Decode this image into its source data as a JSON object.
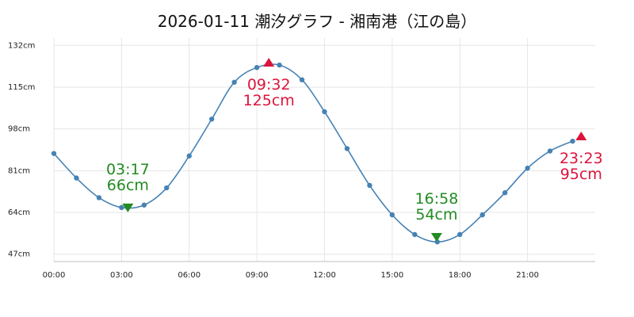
{
  "chart_data": {
    "type": "line",
    "title": "2026-01-11 潮汐グラフ - 湘南港（江の島）",
    "xlabel": "",
    "ylabel": "",
    "x_ticks": [
      "00:00",
      "03:00",
      "06:00",
      "09:00",
      "12:00",
      "15:00",
      "18:00",
      "21:00"
    ],
    "y_ticks": [
      "47cm",
      "64cm",
      "81cm",
      "98cm",
      "115cm",
      "132cm"
    ],
    "y_tick_values": [
      47,
      64,
      81,
      98,
      115,
      132
    ],
    "xlim": [
      0,
      24
    ],
    "ylim": [
      44,
      135
    ],
    "grid": true,
    "series": [
      {
        "x": [
          0,
          1,
          2,
          3,
          4,
          5,
          6,
          7,
          8,
          9,
          10,
          11,
          12,
          13,
          14,
          15,
          16,
          17,
          18,
          19,
          20,
          21,
          22,
          23
        ],
        "values": [
          88,
          78,
          70,
          66,
          67,
          74,
          87,
          102,
          117,
          123,
          124,
          118,
          105,
          90,
          75,
          63,
          55,
          52,
          55,
          63,
          72,
          82,
          89,
          93
        ],
        "color": "#4682b4"
      }
    ],
    "extremes": [
      {
        "type": "low",
        "time": "03:17",
        "level": "66cm",
        "x": 3.28,
        "y": 66,
        "color": "#228b22"
      },
      {
        "type": "high",
        "time": "09:32",
        "level": "125cm",
        "x": 9.53,
        "y": 125,
        "color": "#dc143c"
      },
      {
        "type": "low",
        "time": "16:58",
        "level": "54cm",
        "x": 16.97,
        "y": 54,
        "color": "#228b22"
      },
      {
        "type": "high",
        "time": "23:23",
        "level": "95cm",
        "x": 23.38,
        "y": 95,
        "color": "#dc143c"
      }
    ]
  }
}
